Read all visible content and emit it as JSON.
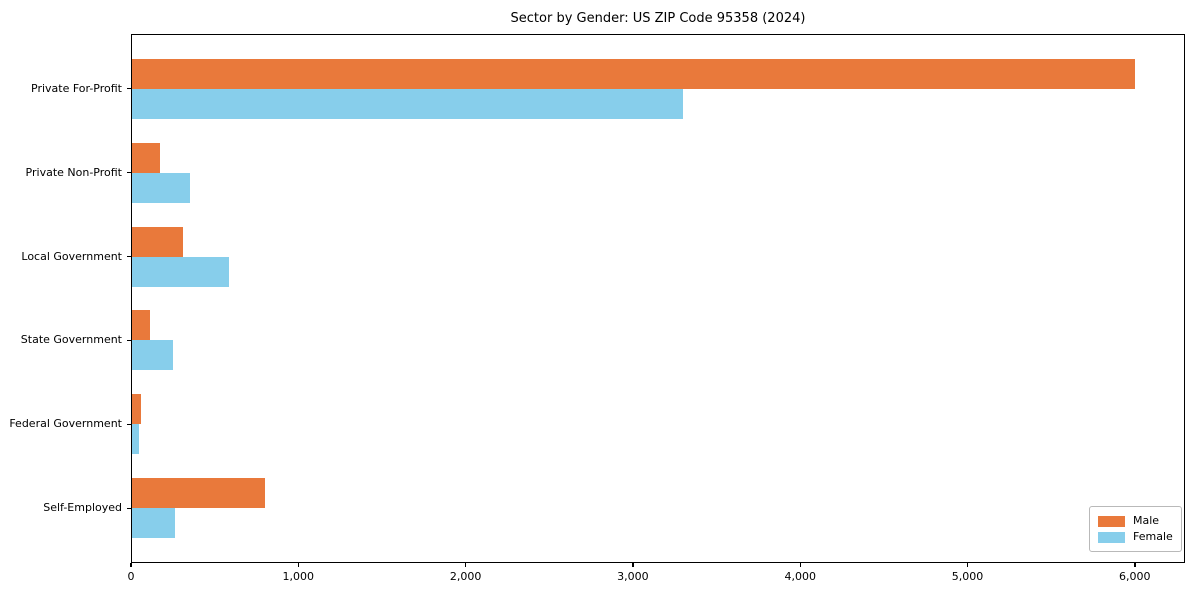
{
  "chart_data": {
    "type": "bar",
    "orientation": "horizontal",
    "title": "Sector by Gender: US ZIP Code 95358 (2024)",
    "categories": [
      "Private For-Profit",
      "Private Non-Profit",
      "Local Government",
      "State Government",
      "Federal Government",
      "Self-Employed"
    ],
    "series": [
      {
        "name": "Male",
        "color": "#E9793B",
        "values": [
          6000,
          175,
          310,
          115,
          60,
          800
        ]
      },
      {
        "name": "Female",
        "color": "#87CEEB",
        "values": [
          3300,
          355,
          585,
          250,
          45,
          265
        ]
      }
    ],
    "xlabel": "",
    "ylabel": "",
    "xlim": [
      0,
      6300
    ],
    "x_ticks": [
      0,
      1000,
      2000,
      3000,
      4000,
      5000,
      6000
    ],
    "x_tick_labels": [
      "0",
      "1,000",
      "2,000",
      "3,000",
      "4,000",
      "5,000",
      "6,000"
    ],
    "grid": false,
    "background": "#ffffff",
    "frame_color": "#000000",
    "legend": {
      "position": "lower right",
      "entries": [
        "Male",
        "Female"
      ]
    }
  }
}
